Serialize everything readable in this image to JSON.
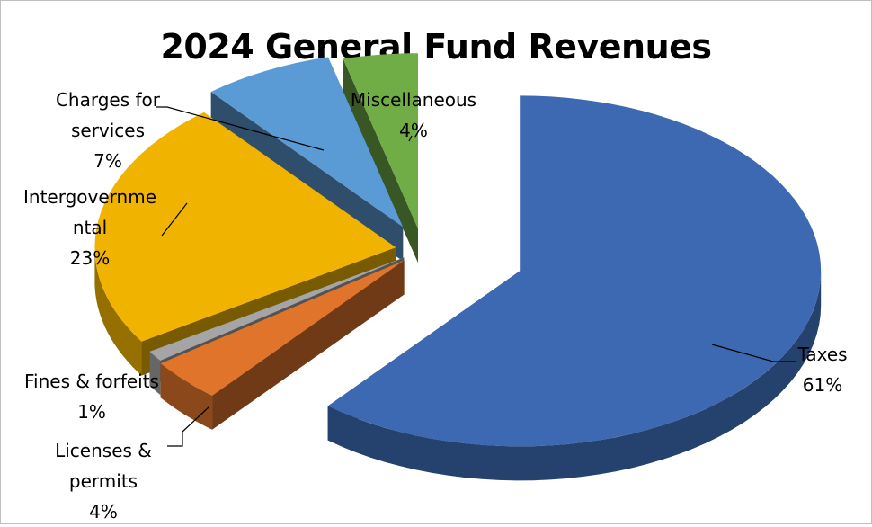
{
  "chart_data": {
    "type": "pie",
    "title": "2024 General Fund Revenues",
    "slices": [
      {
        "label": "Taxes",
        "value": 61,
        "pct": "61%",
        "color": "#3c69b1"
      },
      {
        "label": "Licenses & permits",
        "value": 4,
        "pct": "4%",
        "color": "#e0742b"
      },
      {
        "label": "Fines & forfeits",
        "value": 1,
        "pct": "1%",
        "color": "#a5a5a5"
      },
      {
        "label": "Intergovernmental",
        "value": 23,
        "pct": "23%",
        "color": "#f0b400"
      },
      {
        "label": "Charges for services",
        "value": 7,
        "pct": "7%",
        "color": "#5b9bd5"
      },
      {
        "label": "Miscellaneous",
        "value": 4,
        "pct": "4%",
        "color": "#70ad47"
      }
    ],
    "label_lines": {
      "taxes": "Taxes\n61%",
      "licenses": "Licenses &\npermits\n4%",
      "fines": "Fines & forfeits\n1%",
      "intergov": "Intergovernme\nntal\n23%",
      "charges": "Charges for\nservices\n7%",
      "misc": "Miscellaneous\n4%"
    },
    "style": "3d-exploded",
    "legend": "none"
  }
}
